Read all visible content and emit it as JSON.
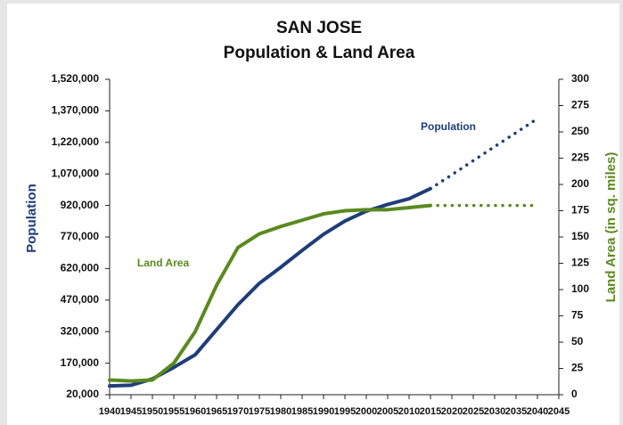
{
  "chart_data": {
    "type": "line",
    "title": "SAN JOSE",
    "subtitle": "Population & Land Area",
    "ylabel": "Population",
    "y2label": "Land Area (in sq. miles)",
    "annotations": [
      "Population",
      "Land Area"
    ],
    "x": [
      1940,
      1945,
      1950,
      1955,
      1960,
      1965,
      1970,
      1975,
      1980,
      1985,
      1990,
      1995,
      2000,
      2005,
      2010,
      2015,
      2020,
      2025,
      2030,
      2035,
      2040
    ],
    "projection_start": 2015,
    "series": [
      {
        "name": "Population",
        "color": "#1f3d7a",
        "axis": "y",
        "values": [
          62000,
          65000,
          95000,
          150000,
          210000,
          329000,
          448000,
          550000,
          626000,
          706000,
          783000,
          846000,
          893000,
          925000,
          952000,
          1000000,
          1066000,
          1133000,
          1200000,
          1266000,
          1333000
        ]
      },
      {
        "name": "Land Area",
        "color": "#5a8a1e",
        "axis": "y2",
        "values": [
          14,
          13,
          14,
          30,
          60,
          104,
          140,
          153,
          160,
          166,
          172,
          175,
          176,
          176,
          178,
          180,
          180,
          180,
          180,
          180,
          180
        ]
      }
    ],
    "xlim": [
      1940,
      2045
    ],
    "xticks": [
      1940,
      1945,
      1950,
      1955,
      1960,
      1965,
      1970,
      1975,
      1980,
      1985,
      1990,
      1995,
      2000,
      2005,
      2010,
      2015,
      2020,
      2025,
      2030,
      2035,
      2040,
      2045
    ],
    "ylim": [
      20000,
      1520000
    ],
    "yticks": [
      {
        "value": 20000,
        "label": "20,000"
      },
      {
        "value": 170000,
        "label": "170,000"
      },
      {
        "value": 320000,
        "label": "320,000"
      },
      {
        "value": 470000,
        "label": "470,000"
      },
      {
        "value": 620000,
        "label": "620,000"
      },
      {
        "value": 770000,
        "label": "770,000"
      },
      {
        "value": 920000,
        "label": "920,000"
      },
      {
        "value": 1070000,
        "label": "1,070,000"
      },
      {
        "value": 1220000,
        "label": "1,220,000"
      },
      {
        "value": 1370000,
        "label": "1,370,000"
      },
      {
        "value": 1520000,
        "label": "1,520,000"
      }
    ],
    "y2lim": [
      0,
      300
    ],
    "y2ticks": [
      0,
      25,
      50,
      75,
      100,
      125,
      150,
      175,
      200,
      225,
      250,
      275,
      300
    ]
  }
}
